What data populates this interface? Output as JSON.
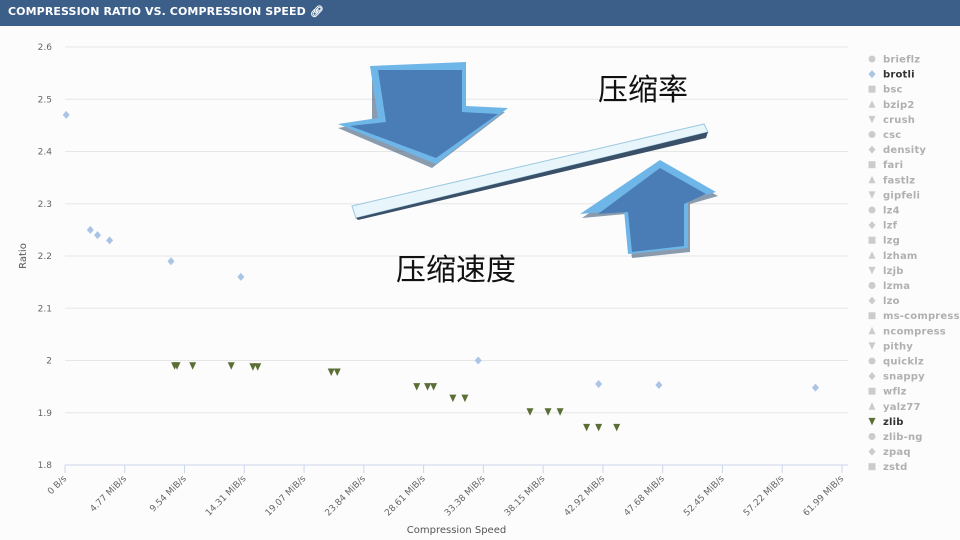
{
  "header": {
    "title": "COMPRESSION RATIO VS. COMPRESSION SPEED",
    "link_icon": "link-icon"
  },
  "overlay": {
    "ratio_text": "压缩率",
    "speed_text": "压缩速度"
  },
  "colors": {
    "header_bg": "#3c5f8a",
    "brotli": "#a9c4e4",
    "zlib": "#5a6e36",
    "inactive": "#cccccc",
    "grid": "#e6e6e6",
    "arrow_blue": "#4a7db5",
    "arrow_light": "#6fb6e8"
  },
  "chart_data": {
    "type": "scatter",
    "xlabel": "Compression Speed",
    "ylabel": "Ratio",
    "xlim": [
      0,
      65
    ],
    "ylim": [
      1.8,
      2.6
    ],
    "x_ticks": [
      "0 B/s",
      "4.77 MiB/s",
      "9.54 MiB/s",
      "14.31 MiB/s",
      "19.07 MiB/s",
      "23.84 MiB/s",
      "28.61 MiB/s",
      "33.38 MiB/s",
      "38.15 MiB/s",
      "42.92 MiB/s",
      "47.68 MiB/s",
      "52.45 MiB/s",
      "57.22 MiB/s",
      "61.99 MiB/s"
    ],
    "y_ticks": [
      "1.8",
      "1.9",
      "2",
      "2.1",
      "2.2",
      "2.3",
      "2.4",
      "2.5",
      "2.6"
    ],
    "grid": true,
    "legend_position": "right",
    "legend": [
      {
        "name": "brieflz",
        "symbol": "circle",
        "active": false
      },
      {
        "name": "brotli",
        "symbol": "diamond",
        "active": true
      },
      {
        "name": "bsc",
        "symbol": "square",
        "active": false
      },
      {
        "name": "bzip2",
        "symbol": "triangle",
        "active": false
      },
      {
        "name": "crush",
        "symbol": "triangle-down",
        "active": false
      },
      {
        "name": "csc",
        "symbol": "circle",
        "active": false
      },
      {
        "name": "density",
        "symbol": "diamond",
        "active": false
      },
      {
        "name": "fari",
        "symbol": "square",
        "active": false
      },
      {
        "name": "fastlz",
        "symbol": "triangle",
        "active": false
      },
      {
        "name": "gipfeli",
        "symbol": "triangle-down",
        "active": false
      },
      {
        "name": "lz4",
        "symbol": "circle",
        "active": false
      },
      {
        "name": "lzf",
        "symbol": "diamond",
        "active": false
      },
      {
        "name": "lzg",
        "symbol": "square",
        "active": false
      },
      {
        "name": "lzham",
        "symbol": "triangle",
        "active": false
      },
      {
        "name": "lzjb",
        "symbol": "triangle-down",
        "active": false
      },
      {
        "name": "lzma",
        "symbol": "circle",
        "active": false
      },
      {
        "name": "lzo",
        "symbol": "diamond",
        "active": false
      },
      {
        "name": "ms-compress",
        "symbol": "square",
        "active": false
      },
      {
        "name": "ncompress",
        "symbol": "triangle",
        "active": false
      },
      {
        "name": "pithy",
        "symbol": "triangle-down",
        "active": false
      },
      {
        "name": "quicklz",
        "symbol": "circle",
        "active": false
      },
      {
        "name": "snappy",
        "symbol": "diamond",
        "active": false
      },
      {
        "name": "wflz",
        "symbol": "square",
        "active": false
      },
      {
        "name": "yalz77",
        "symbol": "triangle",
        "active": false
      },
      {
        "name": "zlib",
        "symbol": "triangle-down",
        "active": true
      },
      {
        "name": "zlib-ng",
        "symbol": "circle",
        "active": false
      },
      {
        "name": "zpaq",
        "symbol": "diamond",
        "active": false
      },
      {
        "name": "zstd",
        "symbol": "square",
        "active": false
      }
    ],
    "series": [
      {
        "name": "brotli",
        "symbol": "diamond",
        "color": "#a9c4e4",
        "points": [
          [
            0.1,
            2.47
          ],
          [
            2.1,
            2.25
          ],
          [
            2.7,
            2.24
          ],
          [
            3.7,
            2.23
          ],
          [
            8.8,
            2.19
          ],
          [
            14.6,
            2.16
          ],
          [
            34.3,
            2.0
          ],
          [
            44.3,
            1.955
          ],
          [
            49.3,
            1.953
          ],
          [
            62.3,
            1.948
          ]
        ]
      },
      {
        "name": "zlib",
        "symbol": "triangle-down",
        "color": "#5a6e36",
        "points": [
          [
            9.1,
            1.99
          ],
          [
            9.3,
            1.99
          ],
          [
            10.6,
            1.99
          ],
          [
            13.8,
            1.99
          ],
          [
            15.6,
            1.988
          ],
          [
            16.0,
            1.988
          ],
          [
            22.1,
            1.978
          ],
          [
            22.6,
            1.978
          ],
          [
            29.2,
            1.95
          ],
          [
            30.1,
            1.95
          ],
          [
            30.6,
            1.95
          ],
          [
            32.2,
            1.928
          ],
          [
            33.2,
            1.928
          ],
          [
            38.6,
            1.902
          ],
          [
            40.1,
            1.902
          ],
          [
            41.1,
            1.902
          ],
          [
            43.3,
            1.872
          ],
          [
            44.3,
            1.872
          ],
          [
            45.8,
            1.872
          ]
        ]
      }
    ]
  }
}
